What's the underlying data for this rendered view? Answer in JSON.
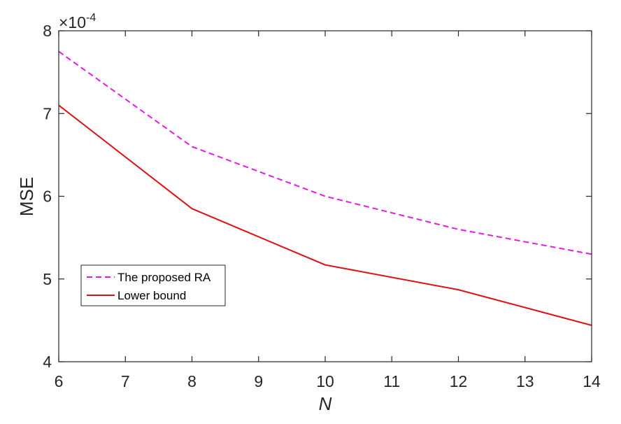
{
  "chart_data": {
    "type": "line",
    "x": [
      6,
      8,
      10,
      12,
      14
    ],
    "series": [
      {
        "name": "The proposed RA",
        "values": [
          7.75,
          6.6,
          6.0,
          5.6,
          5.3
        ],
        "color": "#e41ae4",
        "dash": "dashed"
      },
      {
        "name": "Lower bound",
        "values": [
          7.1,
          5.85,
          5.17,
          4.87,
          4.44
        ],
        "color": "#dd1111",
        "dash": "solid"
      }
    ],
    "xlabel": "N",
    "ylabel": "MSE",
    "xlim": [
      6,
      14
    ],
    "ylim": [
      4,
      8
    ],
    "xticks": [
      "6",
      "7",
      "8",
      "9",
      "10",
      "11",
      "12",
      "13",
      "14"
    ],
    "yticks": [
      "4",
      "5",
      "6",
      "7",
      "8"
    ],
    "exponent": {
      "base": "×10",
      "power": "-4"
    },
    "legend_position": "lower-left",
    "grid": false
  }
}
